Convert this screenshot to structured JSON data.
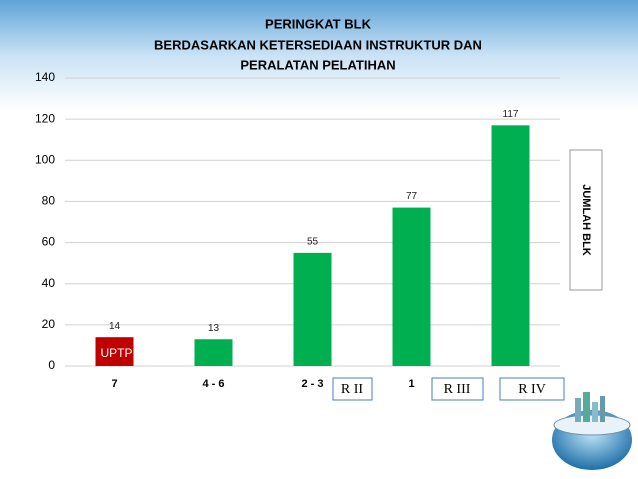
{
  "chart_data": {
    "type": "bar",
    "title": [
      "PERINGKAT BLK",
      "BERDASARKAN KETERSEDIAAN INSTRUKTUR DAN",
      "PERALATAN PELATIHAN"
    ],
    "ylabel": "JUMLAH BLK",
    "categories": [
      "7",
      "4 - 6",
      "2 - 3",
      "1",
      null
    ],
    "values": [
      14,
      13,
      55,
      77,
      117
    ],
    "colors": [
      "#c00000",
      "#00b050",
      "#00b050",
      "#00b050",
      "#00b050"
    ],
    "ylim": [
      0,
      140
    ],
    "yticks": [
      0,
      20,
      40,
      60,
      80,
      100,
      120,
      140
    ],
    "grid": true,
    "annotations": [
      "UPTP",
      "R II",
      "R III",
      "R IV"
    ]
  }
}
